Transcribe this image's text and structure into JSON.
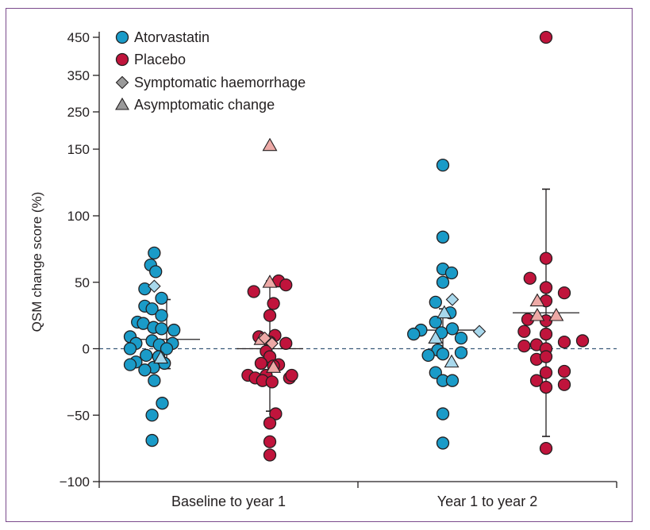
{
  "chart_data": {
    "type": "scatter",
    "title": "",
    "ylabel": "QSM change score (%)",
    "xlabel": "",
    "categories": [
      "Baseline to year 1",
      "Year 1 to year 2"
    ],
    "y_ticks": [
      "450",
      "350",
      "250",
      "150",
      "100",
      "50",
      "0",
      "−50",
      "−100"
    ],
    "y_scale": "broken above 100 (450, 350, 250, 150)",
    "reference_line": 0,
    "colors": {
      "atorvastatin": "#1a9bc8",
      "placebo": "#c0143c",
      "atorvastatin_light": "#a8d8ec",
      "placebo_light": "#eda9a6"
    },
    "legend": {
      "position": "top-left",
      "items": [
        {
          "label": "Atorvastatin",
          "marker": "circle",
          "color": "#1a9bc8"
        },
        {
          "label": "Placebo",
          "marker": "circle",
          "color": "#c0143c"
        },
        {
          "label": "Symptomatic haemorrhage",
          "marker": "diamond",
          "color": "#9a9a9a"
        },
        {
          "label": "Asymptomatic change",
          "marker": "triangle",
          "color": "#9a9a9a"
        }
      ]
    },
    "groups": [
      {
        "category": "Baseline to year 1",
        "arm": "Atorvastatin",
        "median": 7,
        "whisker": [
          -15,
          37
        ],
        "points": [
          {
            "x": -0.17,
            "y": 72
          },
          {
            "x": -0.22,
            "y": 63
          },
          {
            "x": -0.15,
            "y": 58
          },
          {
            "x": -0.3,
            "y": 45
          },
          {
            "x": -0.07,
            "y": 38
          },
          {
            "x": -0.3,
            "y": 32
          },
          {
            "x": -0.2,
            "y": 30
          },
          {
            "x": -0.07,
            "y": 25
          },
          {
            "x": -0.4,
            "y": 20
          },
          {
            "x": -0.32,
            "y": 19
          },
          {
            "x": -0.18,
            "y": 16
          },
          {
            "x": -0.07,
            "y": 15
          },
          {
            "x": 0.1,
            "y": 14
          },
          {
            "x": -0.5,
            "y": 9
          },
          {
            "x": -0.2,
            "y": 6
          },
          {
            "x": -0.42,
            "y": 4
          },
          {
            "x": -0.1,
            "y": 3
          },
          {
            "x": 0.08,
            "y": 4
          },
          {
            "x": -0.5,
            "y": 0
          },
          {
            "x": 0.0,
            "y": 0
          },
          {
            "x": -0.28,
            "y": -5
          },
          {
            "x": -0.11,
            "y": -6
          },
          {
            "x": -0.42,
            "y": -10
          },
          {
            "x": -0.03,
            "y": -11
          },
          {
            "x": -0.5,
            "y": -12
          },
          {
            "x": -0.18,
            "y": -14
          },
          {
            "x": -0.3,
            "y": -16
          },
          {
            "x": -0.17,
            "y": -24
          },
          {
            "x": -0.06,
            "y": -41
          },
          {
            "x": -0.2,
            "y": -50
          },
          {
            "x": -0.2,
            "y": -69
          }
        ],
        "symptomatic": [
          {
            "x": -0.17,
            "y": 47
          }
        ],
        "asymptomatic": [
          {
            "x": -0.08,
            "y": -7
          }
        ]
      },
      {
        "category": "Baseline to year 1",
        "arm": "Placebo",
        "median": 0,
        "whisker": [
          -47,
          51
        ],
        "points": [
          {
            "x": 0.12,
            "y": 51
          },
          {
            "x": 0.22,
            "y": 48
          },
          {
            "x": -0.22,
            "y": 43
          },
          {
            "x": 0.05,
            "y": 34
          },
          {
            "x": 0.0,
            "y": 25
          },
          {
            "x": -0.15,
            "y": 9
          },
          {
            "x": 0.07,
            "y": 10
          },
          {
            "x": 0.22,
            "y": 4
          },
          {
            "x": 0.0,
            "y": 5
          },
          {
            "x": -0.05,
            "y": -2
          },
          {
            "x": 0.0,
            "y": -6
          },
          {
            "x": -0.12,
            "y": -11
          },
          {
            "x": 0.12,
            "y": -12
          },
          {
            "x": 0.05,
            "y": -13
          },
          {
            "x": -0.3,
            "y": -20
          },
          {
            "x": -0.05,
            "y": -20
          },
          {
            "x": 0.27,
            "y": -22
          },
          {
            "x": -0.2,
            "y": -22
          },
          {
            "x": -0.1,
            "y": -24
          },
          {
            "x": 0.03,
            "y": -25
          },
          {
            "x": 0.3,
            "y": -20
          },
          {
            "x": 0.08,
            "y": -49
          },
          {
            "x": 0.0,
            "y": -56
          },
          {
            "x": 0.0,
            "y": -70
          },
          {
            "x": 0.0,
            "y": -80
          }
        ],
        "symptomatic": [
          {
            "x": -0.07,
            "y": 8
          },
          {
            "x": 0.03,
            "y": 4
          }
        ],
        "asymptomatic": [
          {
            "x": 0.0,
            "y": 50
          },
          {
            "x": -0.12,
            "y": 7
          },
          {
            "x": 0.05,
            "y": -14
          },
          {
            "x": 0.0,
            "y": 160
          }
        ]
      },
      {
        "category": "Year 1 to year 2",
        "arm": "Atorvastatin",
        "median": 14,
        "whisker": [
          -4,
          30
        ],
        "points": [
          {
            "x": 0.0,
            "y": 138
          },
          {
            "x": 0.0,
            "y": 84
          },
          {
            "x": 0.0,
            "y": 60
          },
          {
            "x": 0.12,
            "y": 57
          },
          {
            "x": 0.0,
            "y": 50
          },
          {
            "x": -0.1,
            "y": 35
          },
          {
            "x": 0.1,
            "y": 27
          },
          {
            "x": -0.1,
            "y": 20
          },
          {
            "x": -0.3,
            "y": 14
          },
          {
            "x": 0.13,
            "y": 15
          },
          {
            "x": -0.4,
            "y": 11
          },
          {
            "x": -0.02,
            "y": 12
          },
          {
            "x": 0.25,
            "y": 8
          },
          {
            "x": -0.07,
            "y": -1
          },
          {
            "x": 0.0,
            "y": -4
          },
          {
            "x": -0.2,
            "y": -5
          },
          {
            "x": 0.25,
            "y": -3
          },
          {
            "x": -0.1,
            "y": -18
          },
          {
            "x": 0.0,
            "y": -24
          },
          {
            "x": 0.13,
            "y": -24
          },
          {
            "x": 0.0,
            "y": -49
          },
          {
            "x": 0.0,
            "y": -71
          }
        ],
        "symptomatic": [
          {
            "x": 0.13,
            "y": 37
          },
          {
            "x": 0.5,
            "y": 13
          }
        ],
        "asymptomatic": [
          {
            "x": 0.02,
            "y": 27
          },
          {
            "x": -0.1,
            "y": 8
          },
          {
            "x": 0.12,
            "y": -10
          }
        ]
      },
      {
        "category": "Year 1 to year 2",
        "arm": "Placebo",
        "median": 27,
        "whisker": [
          -66,
          120
        ],
        "points": [
          {
            "x": 0.0,
            "y": 450
          },
          {
            "x": 0.0,
            "y": 68
          },
          {
            "x": -0.22,
            "y": 53
          },
          {
            "x": 0.0,
            "y": 46
          },
          {
            "x": 0.25,
            "y": 42
          },
          {
            "x": 0.0,
            "y": 36
          },
          {
            "x": -0.25,
            "y": 22
          },
          {
            "x": 0.0,
            "y": 21
          },
          {
            "x": -0.3,
            "y": 13
          },
          {
            "x": 0.0,
            "y": 11
          },
          {
            "x": 0.25,
            "y": 5
          },
          {
            "x": 0.5,
            "y": 6
          },
          {
            "x": -0.3,
            "y": 2
          },
          {
            "x": -0.13,
            "y": 3
          },
          {
            "x": 0.0,
            "y": 0
          },
          {
            "x": -0.13,
            "y": -8
          },
          {
            "x": 0.0,
            "y": -6
          },
          {
            "x": 0.25,
            "y": -17
          },
          {
            "x": 0.0,
            "y": -18
          },
          {
            "x": -0.13,
            "y": -24
          },
          {
            "x": 0.0,
            "y": -29
          },
          {
            "x": 0.25,
            "y": -27
          },
          {
            "x": 0.0,
            "y": -75
          }
        ],
        "symptomatic": [],
        "asymptomatic": [
          {
            "x": -0.12,
            "y": 36
          },
          {
            "x": -0.12,
            "y": 25
          },
          {
            "x": 0.14,
            "y": 25
          }
        ]
      }
    ]
  }
}
